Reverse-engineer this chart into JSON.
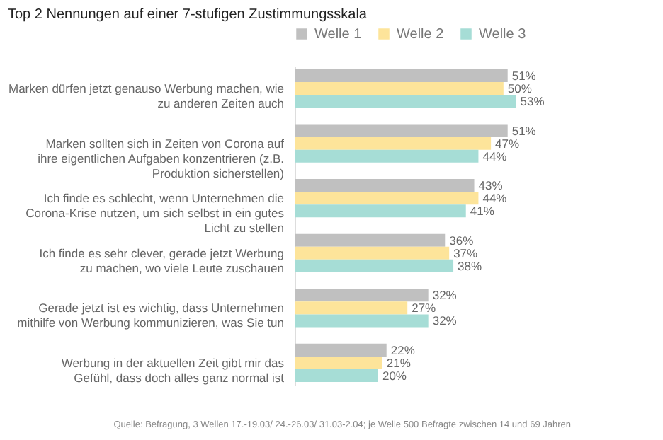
{
  "chart_data": {
    "type": "bar",
    "orientation": "horizontal",
    "title": "Top 2 Nennungen auf einer 7-stufigen Zustimmungsskala",
    "categories": [
      "Marken dürfen jetzt genauso Werbung machen, wie zu anderen Zeiten auch",
      "Marken sollten sich in Zeiten von Corona auf ihre eigentlichen Aufgaben konzentrieren (z.B. Produktion sicherstellen)",
      "Ich finde es schlecht, wenn Unternehmen die Corona-Krise nutzen, um sich selbst in ein gutes Licht zu stellen",
      "Ich finde es sehr clever, gerade jetzt Werbung zu machen, wo viele Leute zuschauen",
      "Gerade jetzt ist es wichtig, dass Unternehmen mithilfe von Werbung kommunizieren, was Sie tun",
      "Werbung in der aktuellen Zeit gibt mir das Gefühl, dass doch alles ganz normal ist"
    ],
    "series": [
      {
        "name": "Welle 1",
        "color": "#c0c0c0",
        "values": [
          51,
          51,
          43,
          36,
          32,
          22
        ],
        "value_labels": [
          "51%",
          "51%",
          "43%",
          "36%",
          "32%",
          "22%"
        ]
      },
      {
        "name": "Welle 2",
        "color": "#fde49a",
        "values": [
          50,
          47,
          44,
          37,
          27,
          21
        ],
        "value_labels": [
          "50%",
          "47%",
          "44%",
          "37%",
          "27%",
          "21%"
        ]
      },
      {
        "name": "Welle 3",
        "color": "#a6ddd6",
        "values": [
          53,
          44,
          41,
          38,
          32,
          20
        ],
        "value_labels": [
          "53%",
          "44%",
          "41%",
          "38%",
          "32%",
          "20%"
        ]
      }
    ],
    "legend": "top",
    "grid": false,
    "annotations": [
      "Quelle: Befragung, 3 Wellen 17.-19.03/ 24.-26.03/ 31.03-2.04; je Welle 500 Befragte zwischen 14 und 69 Jahren"
    ]
  }
}
